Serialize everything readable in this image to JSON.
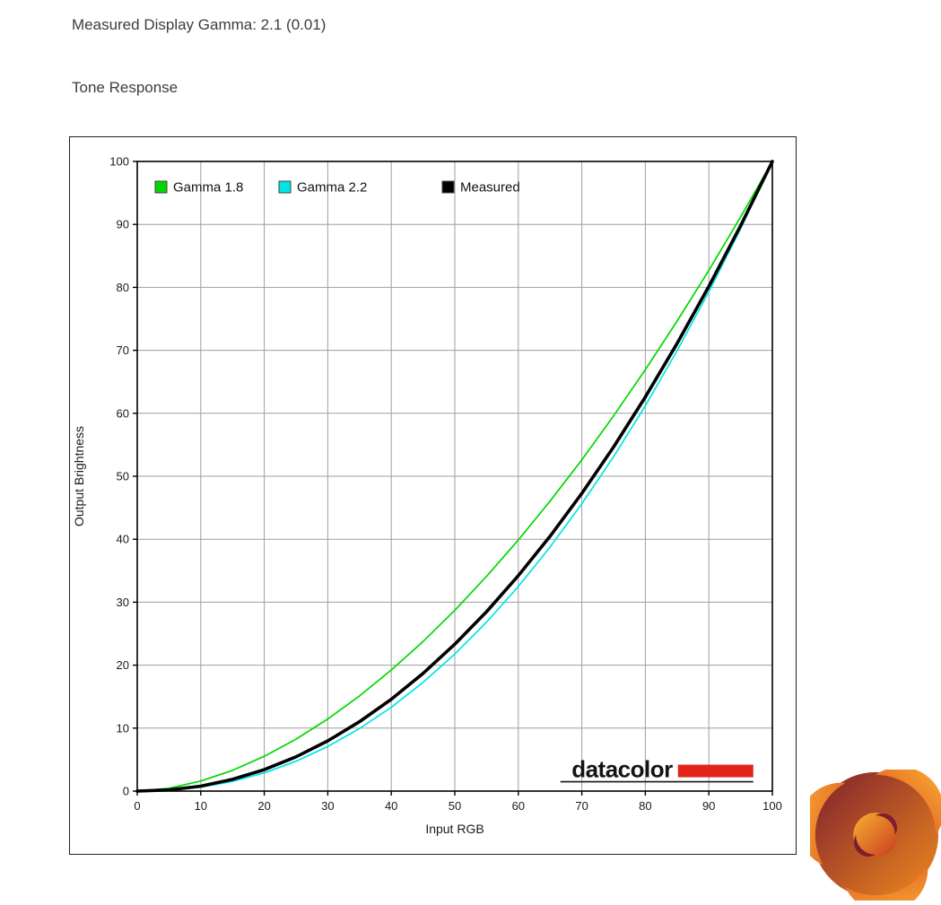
{
  "page": {
    "gamma_line": "Measured Display Gamma: 2.1 (0.01)",
    "section_title": "Tone Response"
  },
  "chart_data": {
    "type": "line",
    "title": "",
    "xlabel": "Input RGB",
    "ylabel": "Output Brightness",
    "xlim": [
      0,
      100
    ],
    "ylim": [
      0,
      100
    ],
    "grid": true,
    "legend_position": "top-left-inside",
    "x_ticks": [
      0,
      10,
      20,
      30,
      40,
      50,
      60,
      70,
      80,
      90,
      100
    ],
    "y_ticks": [
      0,
      10,
      20,
      30,
      40,
      50,
      60,
      70,
      80,
      90,
      100
    ],
    "x": [
      0,
      5,
      10,
      15,
      20,
      25,
      30,
      35,
      40,
      45,
      50,
      55,
      60,
      65,
      70,
      75,
      80,
      85,
      90,
      95,
      100
    ],
    "series": [
      {
        "name": "Gamma 1.8",
        "color": "#00d900",
        "width": 1.7,
        "values": [
          0,
          0.45,
          1.59,
          3.29,
          5.52,
          8.25,
          11.45,
          15.11,
          19.23,
          23.76,
          28.72,
          34.1,
          39.87,
          46.05,
          52.6,
          59.58,
          66.94,
          74.64,
          82.7,
          91.18,
          100
        ]
      },
      {
        "name": "Gamma 2.2",
        "color": "#00e5e5",
        "width": 1.7,
        "values": [
          0,
          0.14,
          0.63,
          1.54,
          2.89,
          4.74,
          7.08,
          9.93,
          13.31,
          17.26,
          21.76,
          26.84,
          32.49,
          38.76,
          45.64,
          53.11,
          61.21,
          69.94,
          79.3,
          89.32,
          100
        ]
      },
      {
        "name": "Measured",
        "color": "#000000",
        "width": 3.6,
        "values": [
          0,
          0.18,
          0.79,
          1.86,
          3.41,
          5.44,
          7.98,
          11.03,
          14.59,
          18.69,
          23.33,
          28.49,
          34.21,
          40.47,
          47.28,
          54.65,
          62.59,
          71.09,
          80.15,
          89.79,
          100
        ]
      }
    ]
  },
  "branding": {
    "datacolor_text": "datacolor",
    "datacolor_red": "#e2231a",
    "kitguru_logo": "kitguru-swirl",
    "kitguru_colors": {
      "dark_red": "#7d1f2e",
      "red_orange": "#d8431c",
      "orange": "#f08a1d",
      "yellow": "#fbb034"
    }
  }
}
